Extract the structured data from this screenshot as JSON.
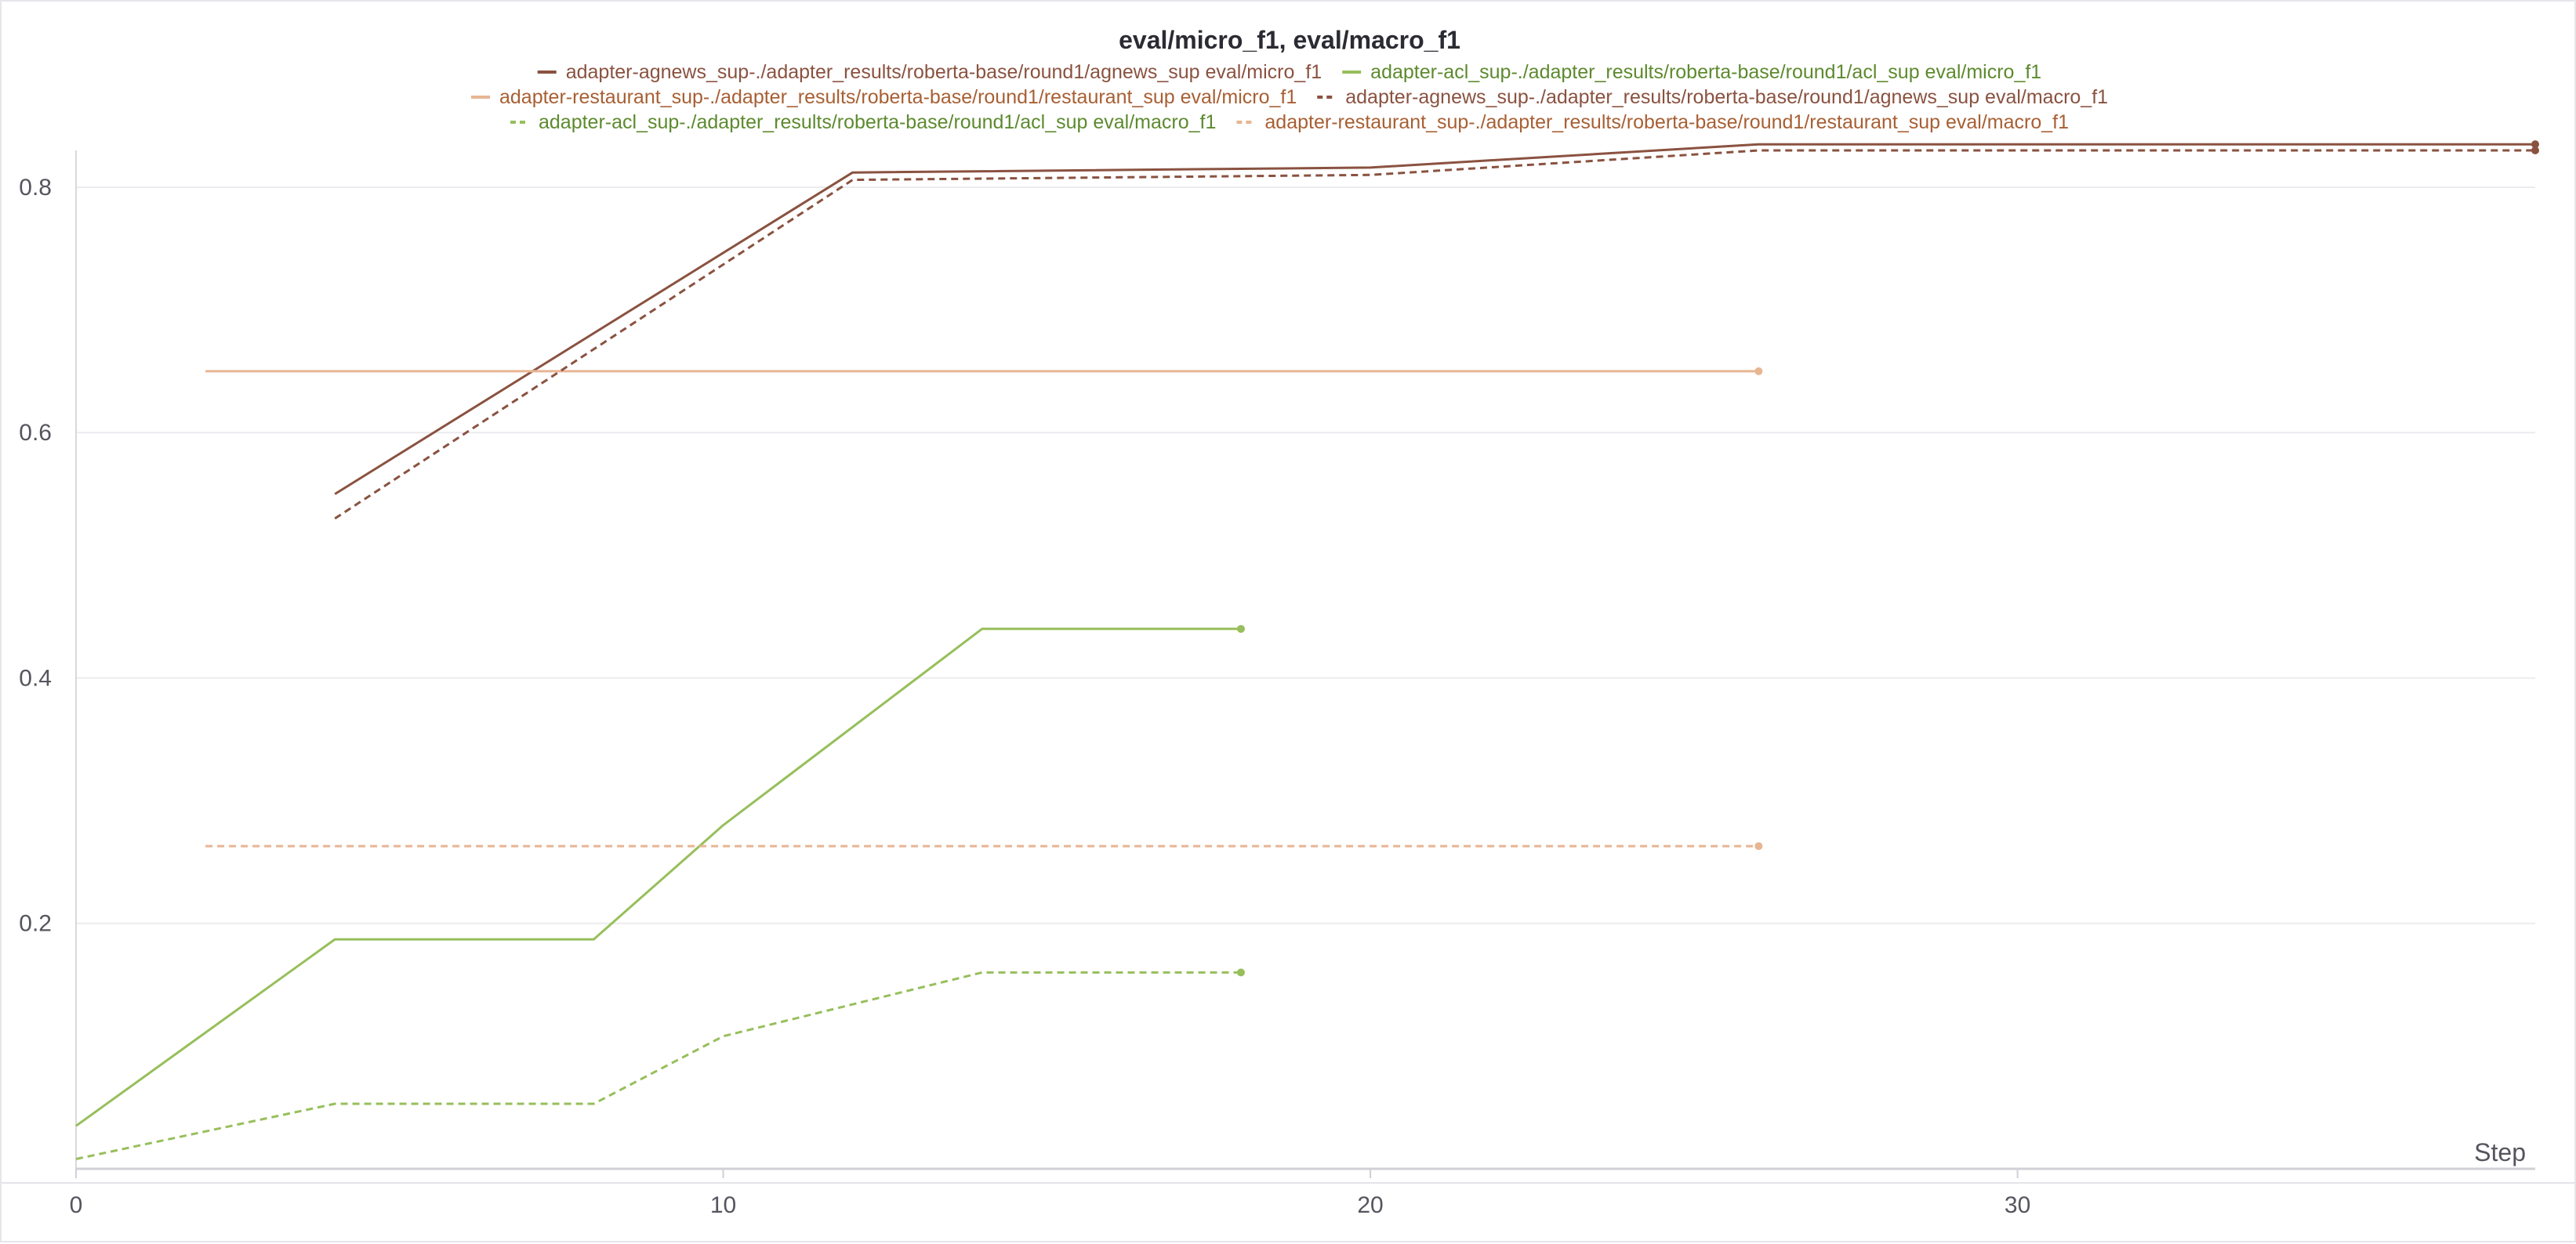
{
  "chart_data": {
    "type": "line",
    "title": "eval/micro_f1, eval/macro_f1",
    "xlabel": "Step",
    "ylabel": "",
    "xlim": [
      0,
      38
    ],
    "ylim": [
      0,
      0.83
    ],
    "x_ticks": [
      0,
      10,
      20,
      30
    ],
    "y_ticks": [
      0.2,
      0.4,
      0.6,
      0.8
    ],
    "grid": true,
    "legend_position": "top",
    "series": [
      {
        "name": "adapter-agnews_sup-./adapter_results/roberta-base/round1/agnews_sup eval/micro_f1",
        "color": "#8a5240",
        "dashed": false,
        "x": [
          4,
          12,
          20,
          26,
          38
        ],
        "y": [
          0.55,
          0.812,
          0.816,
          0.835,
          0.835
        ]
      },
      {
        "name": "adapter-acl_sup-./adapter_results/roberta-base/round1/acl_sup eval/micro_f1",
        "color": "#97bf5b",
        "dashed": false,
        "x": [
          0,
          4,
          8,
          10,
          14,
          18
        ],
        "y": [
          0.035,
          0.187,
          0.187,
          0.28,
          0.44,
          0.44
        ]
      },
      {
        "name": "adapter-restaurant_sup-./adapter_results/roberta-base/round1/restaurant_sup eval/micro_f1",
        "color": "#e8b593",
        "dashed": false,
        "x": [
          2,
          26
        ],
        "y": [
          0.65,
          0.65
        ]
      },
      {
        "name": "adapter-agnews_sup-./adapter_results/roberta-base/round1/agnews_sup eval/macro_f1",
        "color": "#8a5240",
        "dashed": true,
        "x": [
          4,
          12,
          20,
          26,
          38
        ],
        "y": [
          0.53,
          0.806,
          0.81,
          0.83,
          0.83
        ]
      },
      {
        "name": "adapter-acl_sup-./adapter_results/roberta-base/round1/acl_sup eval/macro_f1",
        "color": "#97bf5b",
        "dashed": true,
        "x": [
          0,
          4,
          8,
          10,
          14,
          18
        ],
        "y": [
          0.008,
          0.053,
          0.053,
          0.108,
          0.16,
          0.16
        ]
      },
      {
        "name": "adapter-restaurant_sup-./adapter_results/roberta-base/round1/restaurant_sup eval/macro_f1",
        "color": "#e8b593",
        "dashed": true,
        "x": [
          2,
          26
        ],
        "y": [
          0.263,
          0.263
        ]
      }
    ]
  }
}
